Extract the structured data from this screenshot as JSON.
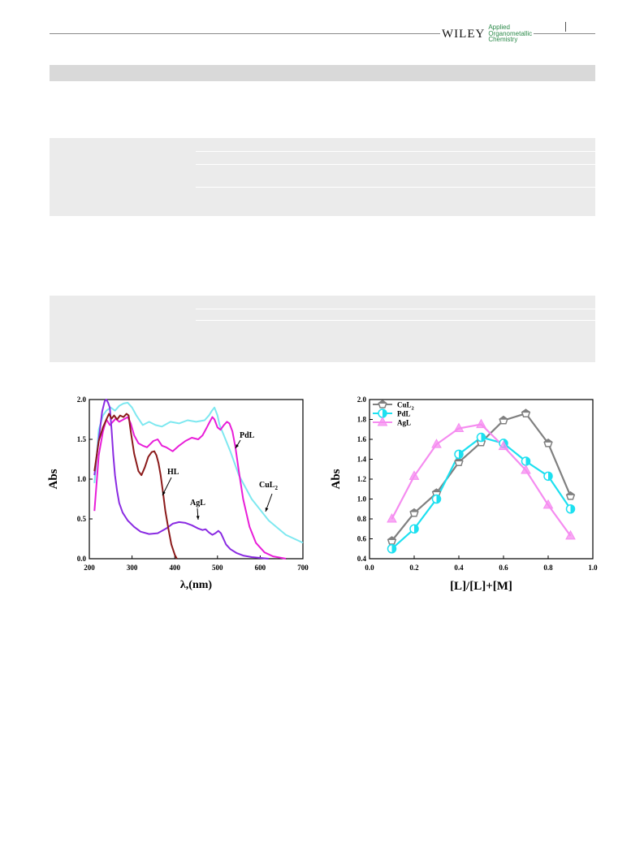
{
  "header": {
    "publisher": "WILEY",
    "journal_line1": "Applied",
    "journal_line2": "Organometallic",
    "journal_line3": "Chemistry"
  },
  "chart_data": [
    {
      "type": "line",
      "xlabel": "λ,(nm)",
      "ylabel": "Abs",
      "xlim": [
        200,
        700
      ],
      "ylim": [
        0.0,
        2.0
      ],
      "xticks": [
        "200",
        "300",
        "400",
        "500",
        "600",
        "700"
      ],
      "yticks": [
        "0.0",
        "0.5",
        "1.0",
        "1.5",
        "2.0"
      ],
      "grid": false,
      "annotations": [
        "HL",
        "PdL",
        "CuL2",
        "AgL"
      ],
      "series": [
        {
          "name": "HL",
          "color": "#8b1a1a",
          "x": [
            212,
            222,
            232,
            240,
            246,
            252,
            258,
            265,
            272,
            280,
            287,
            292,
            297,
            305,
            315,
            322,
            330,
            338,
            346,
            352,
            357,
            362,
            367,
            372,
            378,
            385,
            392,
            400,
            405
          ],
          "y": [
            1.1,
            1.48,
            1.65,
            1.75,
            1.82,
            1.76,
            1.8,
            1.75,
            1.8,
            1.78,
            1.82,
            1.8,
            1.6,
            1.32,
            1.1,
            1.05,
            1.15,
            1.28,
            1.34,
            1.35,
            1.3,
            1.2,
            1.05,
            0.85,
            0.6,
            0.38,
            0.18,
            0.05,
            0.0
          ]
        },
        {
          "name": "PdL",
          "color": "#e81ed8",
          "x": [
            212,
            222,
            232,
            240,
            248,
            255,
            262,
            270,
            280,
            290,
            297,
            305,
            315,
            325,
            335,
            350,
            360,
            370,
            380,
            395,
            410,
            425,
            440,
            455,
            465,
            475,
            482,
            488,
            493,
            500,
            507,
            515,
            522,
            528,
            535,
            542,
            550,
            560,
            575,
            590,
            610,
            630,
            650,
            660
          ],
          "y": [
            0.6,
            1.3,
            1.6,
            1.75,
            1.68,
            1.72,
            1.76,
            1.72,
            1.75,
            1.78,
            1.7,
            1.55,
            1.45,
            1.42,
            1.4,
            1.48,
            1.5,
            1.42,
            1.4,
            1.35,
            1.42,
            1.48,
            1.52,
            1.5,
            1.55,
            1.65,
            1.72,
            1.78,
            1.75,
            1.65,
            1.62,
            1.68,
            1.72,
            1.7,
            1.6,
            1.4,
            1.1,
            0.75,
            0.4,
            0.2,
            0.08,
            0.03,
            0.01,
            0.0
          ]
        },
        {
          "name": "CuL2",
          "color": "#7ee8f0",
          "x": [
            212,
            222,
            232,
            240,
            250,
            260,
            270,
            280,
            290,
            300,
            310,
            325,
            340,
            355,
            370,
            390,
            410,
            430,
            450,
            470,
            480,
            487,
            493,
            500,
            505,
            515,
            530,
            550,
            580,
            620,
            660,
            700
          ],
          "y": [
            0.95,
            1.62,
            1.8,
            1.86,
            1.9,
            1.86,
            1.92,
            1.95,
            1.96,
            1.9,
            1.8,
            1.68,
            1.72,
            1.68,
            1.66,
            1.72,
            1.7,
            1.74,
            1.72,
            1.74,
            1.8,
            1.86,
            1.9,
            1.8,
            1.68,
            1.55,
            1.35,
            1.05,
            0.75,
            0.48,
            0.3,
            0.2
          ]
        },
        {
          "name": "AgL",
          "color": "#8a2be2",
          "x": [
            212,
            222,
            230,
            236,
            240,
            244,
            248,
            252,
            256,
            260,
            265,
            270,
            278,
            290,
            305,
            320,
            340,
            360,
            380,
            395,
            410,
            425,
            440,
            455,
            465,
            472,
            480,
            488,
            495,
            502,
            508,
            514,
            520,
            530,
            545,
            560,
            580,
            600,
            620
          ],
          "y": [
            1.05,
            1.5,
            1.85,
            1.98,
            2.0,
            1.96,
            1.9,
            1.62,
            1.3,
            1.05,
            0.85,
            0.7,
            0.58,
            0.48,
            0.4,
            0.34,
            0.31,
            0.32,
            0.38,
            0.44,
            0.46,
            0.45,
            0.42,
            0.38,
            0.36,
            0.37,
            0.33,
            0.3,
            0.32,
            0.35,
            0.32,
            0.25,
            0.18,
            0.12,
            0.07,
            0.04,
            0.02,
            0.01,
            0.0
          ]
        }
      ]
    },
    {
      "type": "line",
      "xlabel": "[L]/[L]+[M]",
      "ylabel": "Abs",
      "xlim": [
        0.0,
        1.0
      ],
      "ylim": [
        0.4,
        2.0
      ],
      "xticks": [
        "0.0",
        "0.2",
        "0.4",
        "0.6",
        "0.8",
        "1.0"
      ],
      "yticks": [
        "0.4",
        "0.6",
        "0.8",
        "1.0",
        "1.2",
        "1.4",
        "1.6",
        "1.8",
        "2.0"
      ],
      "grid": false,
      "legend": "top-left",
      "x": [
        0.1,
        0.2,
        0.3,
        0.4,
        0.5,
        0.6,
        0.7,
        0.8,
        0.9
      ],
      "series": [
        {
          "name": "CuL2",
          "color": "#808080",
          "marker": "pentagon",
          "values": [
            0.58,
            0.86,
            1.06,
            1.37,
            1.57,
            1.79,
            1.86,
            1.56,
            1.03
          ]
        },
        {
          "name": "PdL",
          "color": "#1de0f0",
          "marker": "half-circle",
          "values": [
            0.5,
            0.7,
            1.0,
            1.45,
            1.62,
            1.56,
            1.38,
            1.23,
            0.9
          ]
        },
        {
          "name": "AgL",
          "color": "#f58cf0",
          "marker": "triangle",
          "values": [
            0.8,
            1.23,
            1.55,
            1.71,
            1.75,
            1.53,
            1.29,
            0.94,
            0.63
          ]
        }
      ]
    }
  ]
}
